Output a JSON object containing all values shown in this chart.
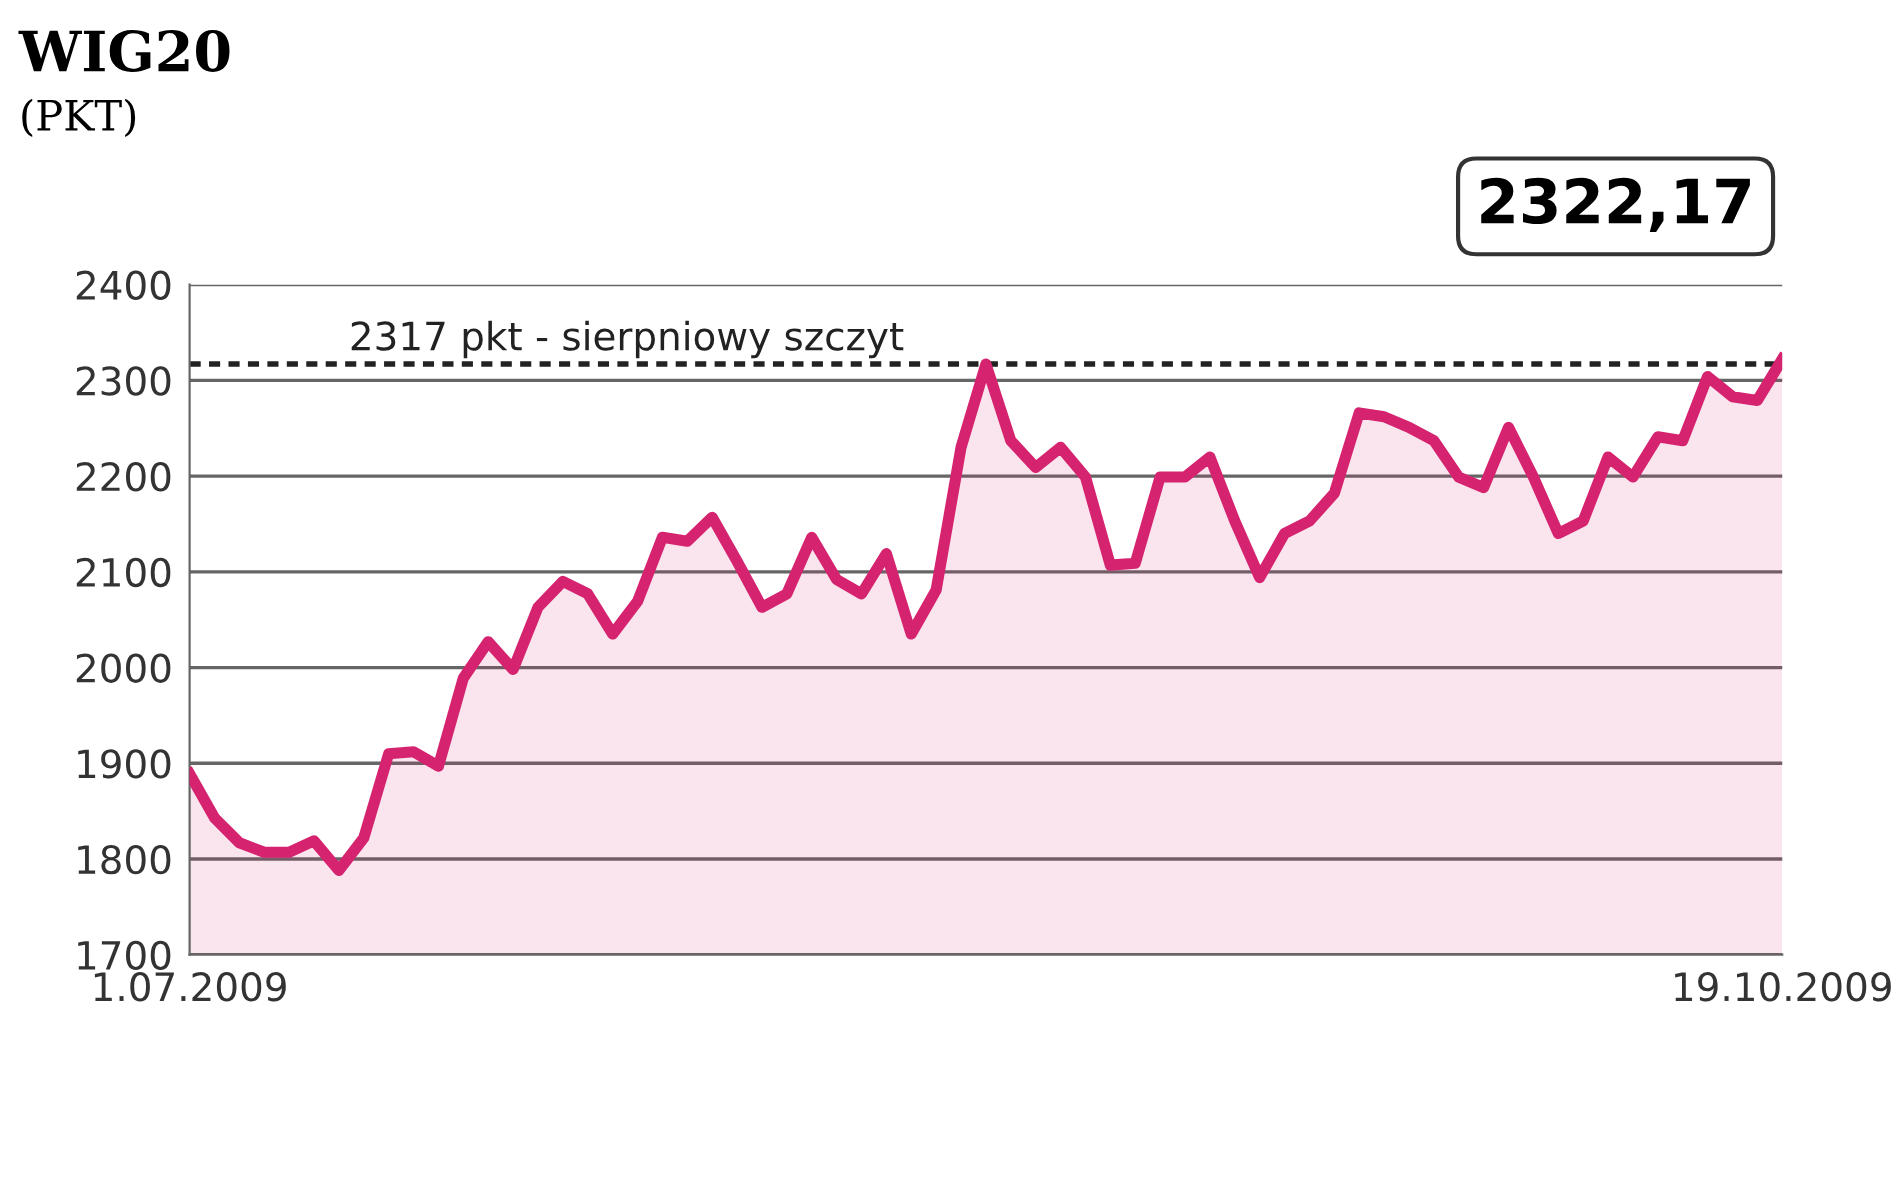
{
  "chart_data": {
    "type": "area",
    "title": "WIG20",
    "subtitle": "(PKT)",
    "categories": [
      "1.07.2009",
      null,
      null,
      null,
      null,
      null,
      null,
      null,
      null,
      null,
      null,
      null,
      null,
      null,
      null,
      null,
      null,
      null,
      null,
      null,
      null,
      null,
      null,
      null,
      null,
      null,
      null,
      null,
      null,
      null,
      null,
      null,
      null,
      null,
      null,
      null,
      null,
      null,
      null,
      null,
      null,
      null,
      null,
      null,
      null,
      null,
      null,
      null,
      null,
      null,
      null,
      null,
      null,
      null,
      null,
      null,
      null,
      null,
      null,
      null,
      null,
      null,
      null,
      null,
      "19.10.2009"
    ],
    "series": [
      {
        "color": "#d6236f",
        "values": [
          1889,
          1843,
          1817,
          1807,
          1807,
          1819,
          1788,
          1822,
          1910,
          1912,
          1897,
          1989,
          2027,
          1998,
          2063,
          2090,
          2077,
          2035,
          2069,
          2136,
          2132,
          2157,
          2111,
          2063,
          2077,
          2136,
          2092,
          2077,
          2119,
          2035,
          2081,
          2230,
          2317,
          2237,
          2209,
          2230,
          2199,
          2107,
          2109,
          2199,
          2199,
          2220,
          2153,
          2094,
          2140,
          2153,
          2182,
          2266,
          2262,
          2251,
          2237,
          2199,
          2188,
          2251,
          2199,
          2140,
          2153,
          2220,
          2199,
          2241,
          2237,
          2304,
          2283,
          2279,
          2322.17
        ]
      }
    ],
    "ylim": [
      1700,
      2400
    ],
    "yticks": [
      1700,
      1800,
      1900,
      2000,
      2100,
      2200,
      2300,
      2400
    ],
    "grid": "y",
    "ref_lines": [
      {
        "axis": "y",
        "value": 2317,
        "label": "2317 pkt - sierpniowy szczyt",
        "color": "#222222",
        "line_style": "dotted"
      }
    ],
    "annotations": [
      {
        "text": "2322,17",
        "x": "19.10.2009",
        "y": 2322.17
      }
    ]
  }
}
